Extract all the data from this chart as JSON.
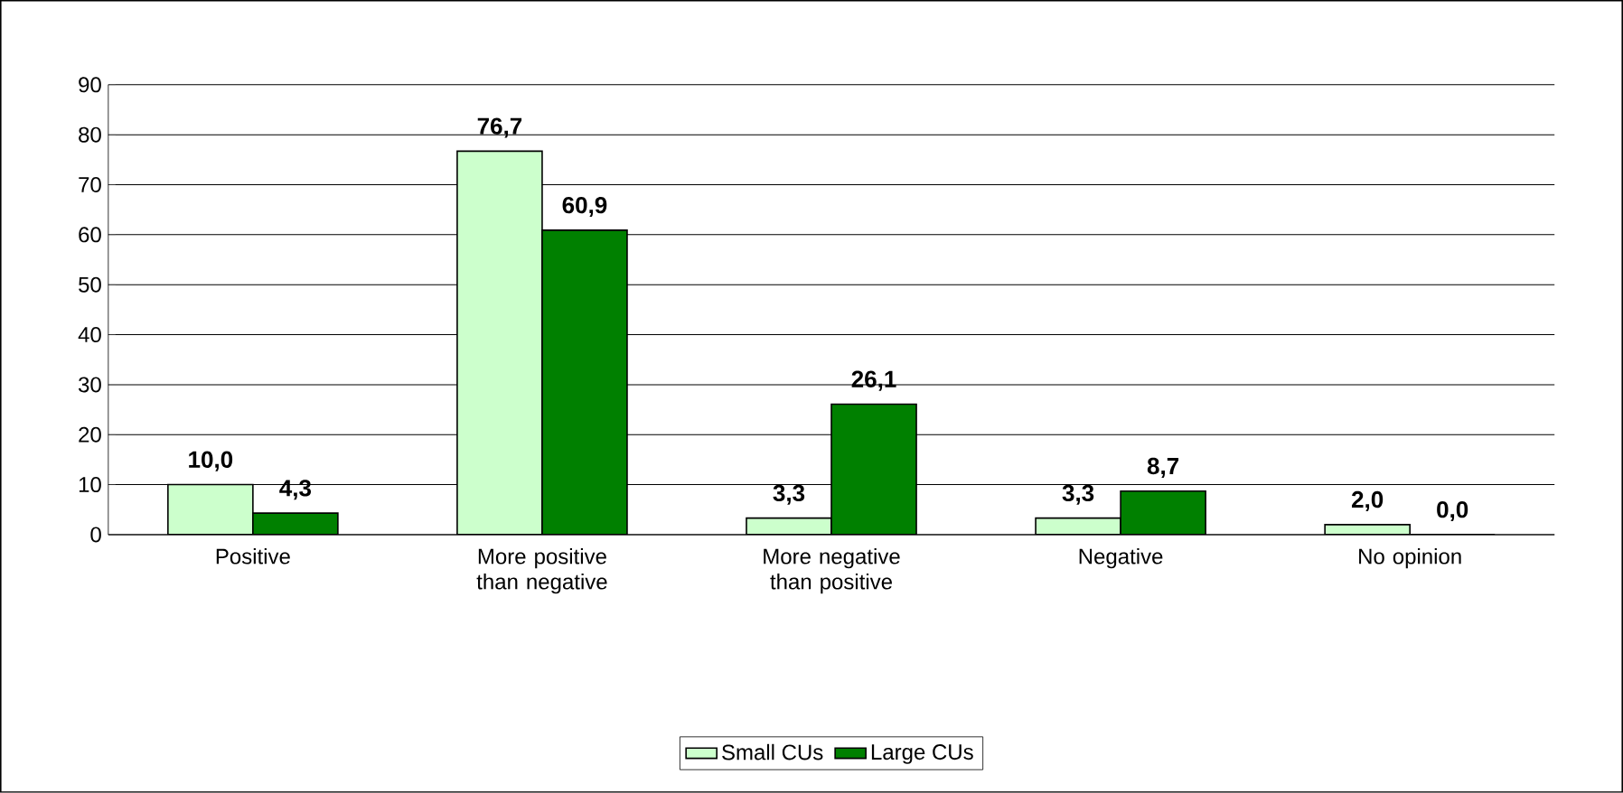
{
  "chart_data": {
    "type": "bar",
    "categories": [
      "Positive",
      "More positive than negative",
      "More negative than positive",
      "Negative",
      "No opinion"
    ],
    "series": [
      {
        "name": "Small CUs",
        "color": "#ccffcc",
        "values": [
          10.0,
          76.7,
          3.3,
          3.3,
          2.0
        ],
        "value_labels": [
          "10,0",
          "76,7",
          "3,3",
          "3,3",
          "2,0"
        ]
      },
      {
        "name": "Large CUs",
        "color": "#008000",
        "values": [
          4.3,
          60.9,
          26.1,
          8.7,
          0.0
        ],
        "value_labels": [
          "4,3",
          "60,9",
          "26,1",
          "8,7",
          "0,0"
        ]
      }
    ],
    "ylim": [
      0,
      90
    ],
    "yticks": [
      0,
      10,
      20,
      30,
      40,
      50,
      60,
      70,
      80,
      90
    ],
    "grid": "y",
    "legend": "bottom"
  }
}
